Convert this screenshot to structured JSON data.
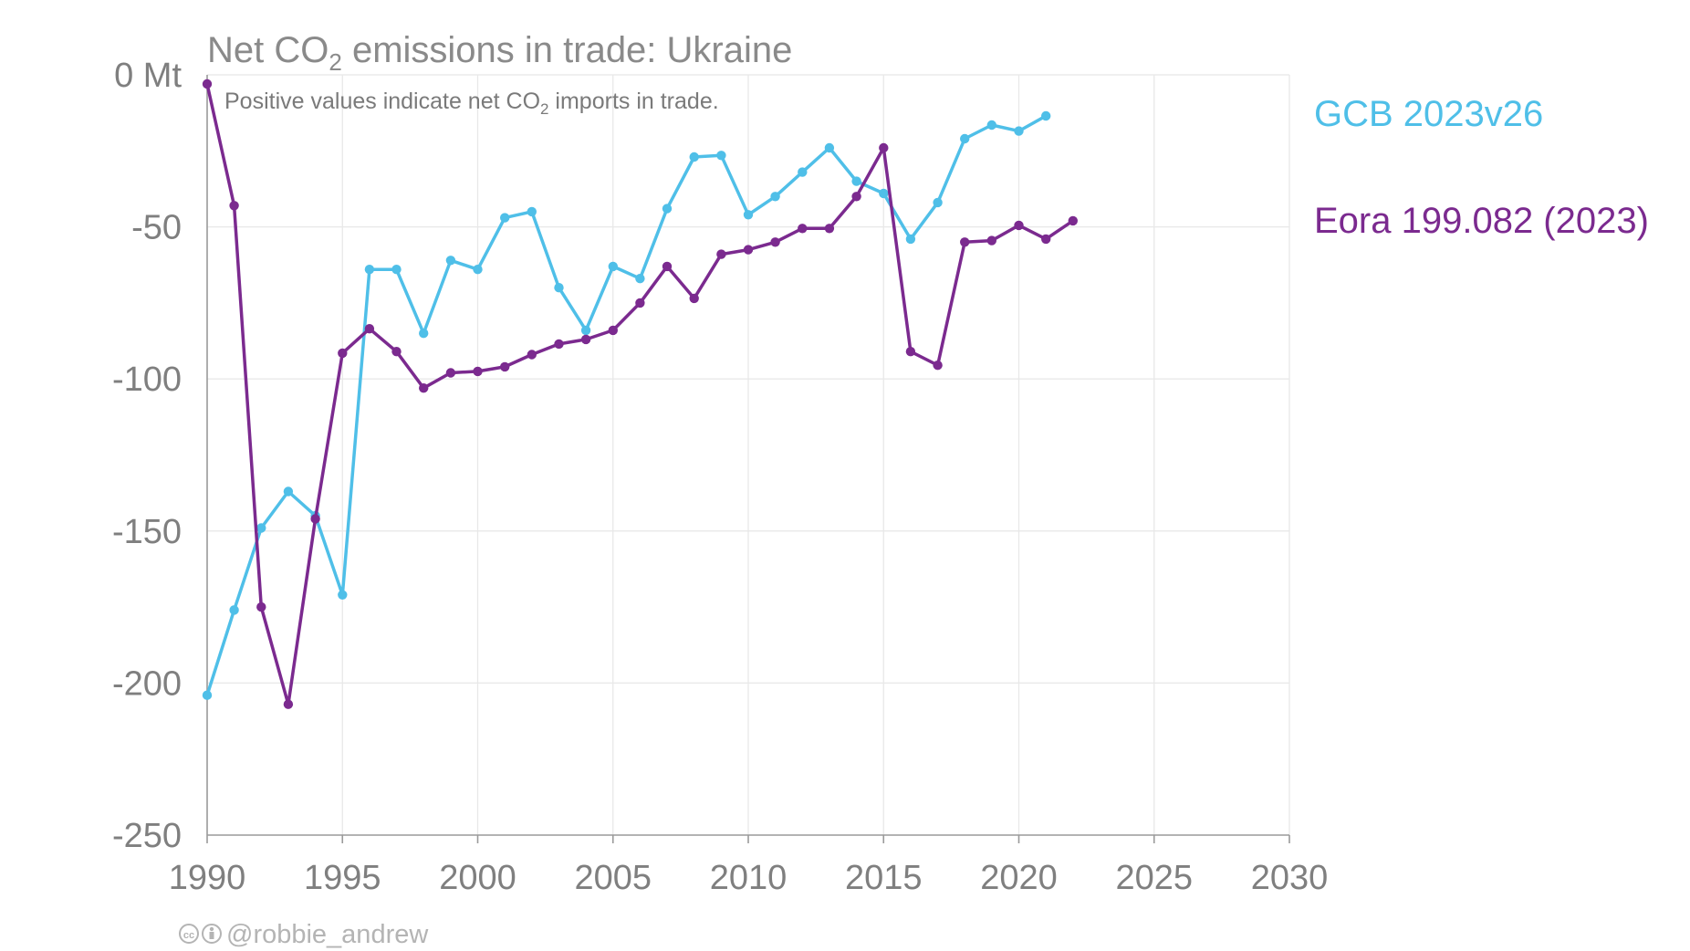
{
  "title": {
    "prefix": "Net CO",
    "sub": "2",
    "suffix": " emissions in trade: Ukraine"
  },
  "subtitle": {
    "prefix": "Positive values indicate net CO",
    "sub": "2",
    "suffix": " imports in trade."
  },
  "credit": "@robbie_andrew",
  "chart_data": {
    "type": "line",
    "x": [
      1990,
      1991,
      1992,
      1993,
      1994,
      1995,
      1996,
      1997,
      1998,
      1999,
      2000,
      2001,
      2002,
      2003,
      2004,
      2005,
      2006,
      2007,
      2008,
      2009,
      2010,
      2011,
      2012,
      2013,
      2014,
      2015,
      2016,
      2017,
      2018,
      2019,
      2020,
      2021,
      2022
    ],
    "xlim": [
      1990,
      2030
    ],
    "ylim": [
      -250,
      0
    ],
    "y_unit": "Mt",
    "xticks": [
      1990,
      1995,
      2000,
      2005,
      2010,
      2015,
      2020,
      2025,
      2030
    ],
    "yticks": [
      0,
      -50,
      -100,
      -150,
      -200,
      -250
    ],
    "ytick_labels": [
      "0 Mt",
      "-50",
      "-100",
      "-150",
      "-200",
      "-250"
    ],
    "grid": true,
    "legend_position": "right",
    "series": [
      {
        "name": "GCB 2023v26",
        "color": "#4fbfe8",
        "values": [
          -204,
          -176,
          -149,
          -137,
          -145,
          -171,
          -64,
          -64,
          -85,
          -61,
          -64,
          -47,
          -45,
          -70,
          -84,
          -63,
          -67,
          -44,
          -27,
          -26.5,
          -46,
          -40,
          -32,
          -24,
          -35,
          -39,
          -54,
          -42,
          -21,
          -16.5,
          -18.5,
          -13.5,
          null
        ]
      },
      {
        "name": "Eora 199.082 (2023)",
        "color": "#7b2a8f",
        "values": [
          -3,
          -43,
          -175,
          -207,
          -146,
          -91.5,
          -83.5,
          -91,
          -103,
          -98,
          -97.5,
          -96,
          -92,
          -88.5,
          -87,
          -84,
          -75,
          -63,
          -73.5,
          -59,
          -57.5,
          -55,
          -50.5,
          -50.5,
          -40,
          -24,
          -91,
          -95.5,
          -55,
          -54.5,
          -49.5,
          -54,
          -48
        ]
      }
    ]
  }
}
